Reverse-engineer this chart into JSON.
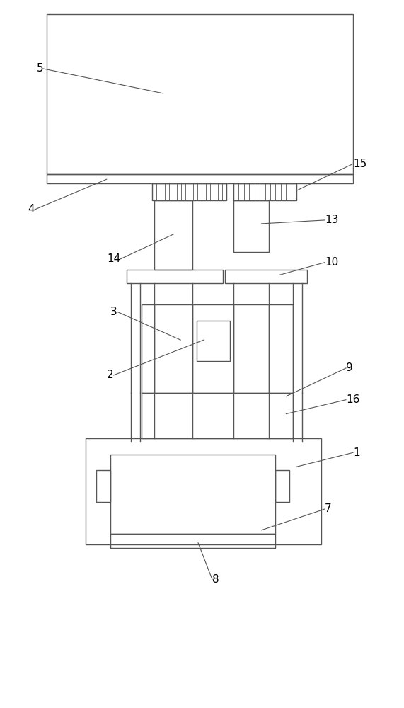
{
  "fig_width": 5.71,
  "fig_height": 10.0,
  "bg_color": "#ffffff",
  "line_color": "#555555",
  "lw": 1.0,
  "green_lw": 1.0
}
